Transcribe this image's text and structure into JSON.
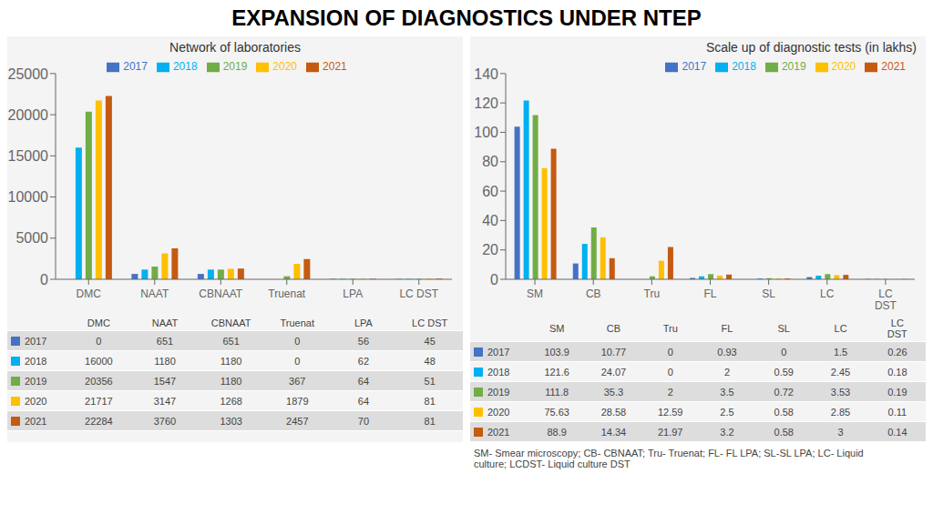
{
  "title": "EXPANSION OF DIAGNOSTICS UNDER NTEP",
  "annotations": [
    "SM- Smear microscopy; CB- CBNAAT; Tru- Truenat; FL- FL LPA; SL-SL LPA; LC- Liquid\nculture; LCDST- Liquid culture DST"
  ],
  "chart_data": [
    {
      "type": "bar",
      "title": "Network of laboratories",
      "categories": [
        "DMC",
        "NAAT",
        "CBNAAT",
        "Truenat",
        "LPA",
        "LC DST"
      ],
      "series": [
        {
          "name": "2017",
          "color": "#4472c4",
          "values": [
            0,
            651,
            651,
            0,
            56,
            45
          ]
        },
        {
          "name": "2018",
          "color": "#00b0f0",
          "values": [
            16000,
            1180,
            1180,
            0,
            62,
            48
          ]
        },
        {
          "name": "2019",
          "color": "#70ad47",
          "values": [
            20356,
            1547,
            1180,
            367,
            64,
            51
          ]
        },
        {
          "name": "2020",
          "color": "#ffc000",
          "values": [
            21717,
            3147,
            1268,
            1879,
            64,
            81
          ]
        },
        {
          "name": "2021",
          "color": "#c55a11",
          "values": [
            22284,
            3760,
            1303,
            2457,
            70,
            81
          ]
        }
      ],
      "ylim": [
        0,
        25000
      ],
      "yticks": [
        0,
        5000,
        10000,
        15000,
        20000,
        25000
      ],
      "grid": false,
      "legend": "top"
    },
    {
      "type": "bar",
      "title": "Scale up of diagnostic tests (in lakhs)",
      "categories": [
        "SM",
        "CB",
        "Tru",
        "FL",
        "SL",
        "LC",
        "LC\nDST"
      ],
      "series": [
        {
          "name": "2017",
          "color": "#4472c4",
          "values": [
            103.9,
            10.77,
            0,
            0.93,
            0,
            1.5,
            0.26
          ]
        },
        {
          "name": "2018",
          "color": "#00b0f0",
          "values": [
            121.6,
            24.07,
            0,
            2,
            0.59,
            2.45,
            0.18
          ]
        },
        {
          "name": "2019",
          "color": "#70ad47",
          "values": [
            111.8,
            35.3,
            2,
            3.5,
            0.72,
            3.53,
            0.19
          ]
        },
        {
          "name": "2020",
          "color": "#ffc000",
          "values": [
            75.63,
            28.58,
            12.59,
            2.5,
            0.58,
            2.85,
            0.11
          ]
        },
        {
          "name": "2021",
          "color": "#c55a11",
          "values": [
            88.9,
            14.34,
            21.97,
            3.2,
            0.58,
            3,
            0.14
          ]
        }
      ],
      "ylim": [
        0,
        140
      ],
      "yticks": [
        0,
        20,
        40,
        60,
        80,
        100,
        120,
        140
      ],
      "grid": false,
      "legend": "top-right"
    }
  ]
}
